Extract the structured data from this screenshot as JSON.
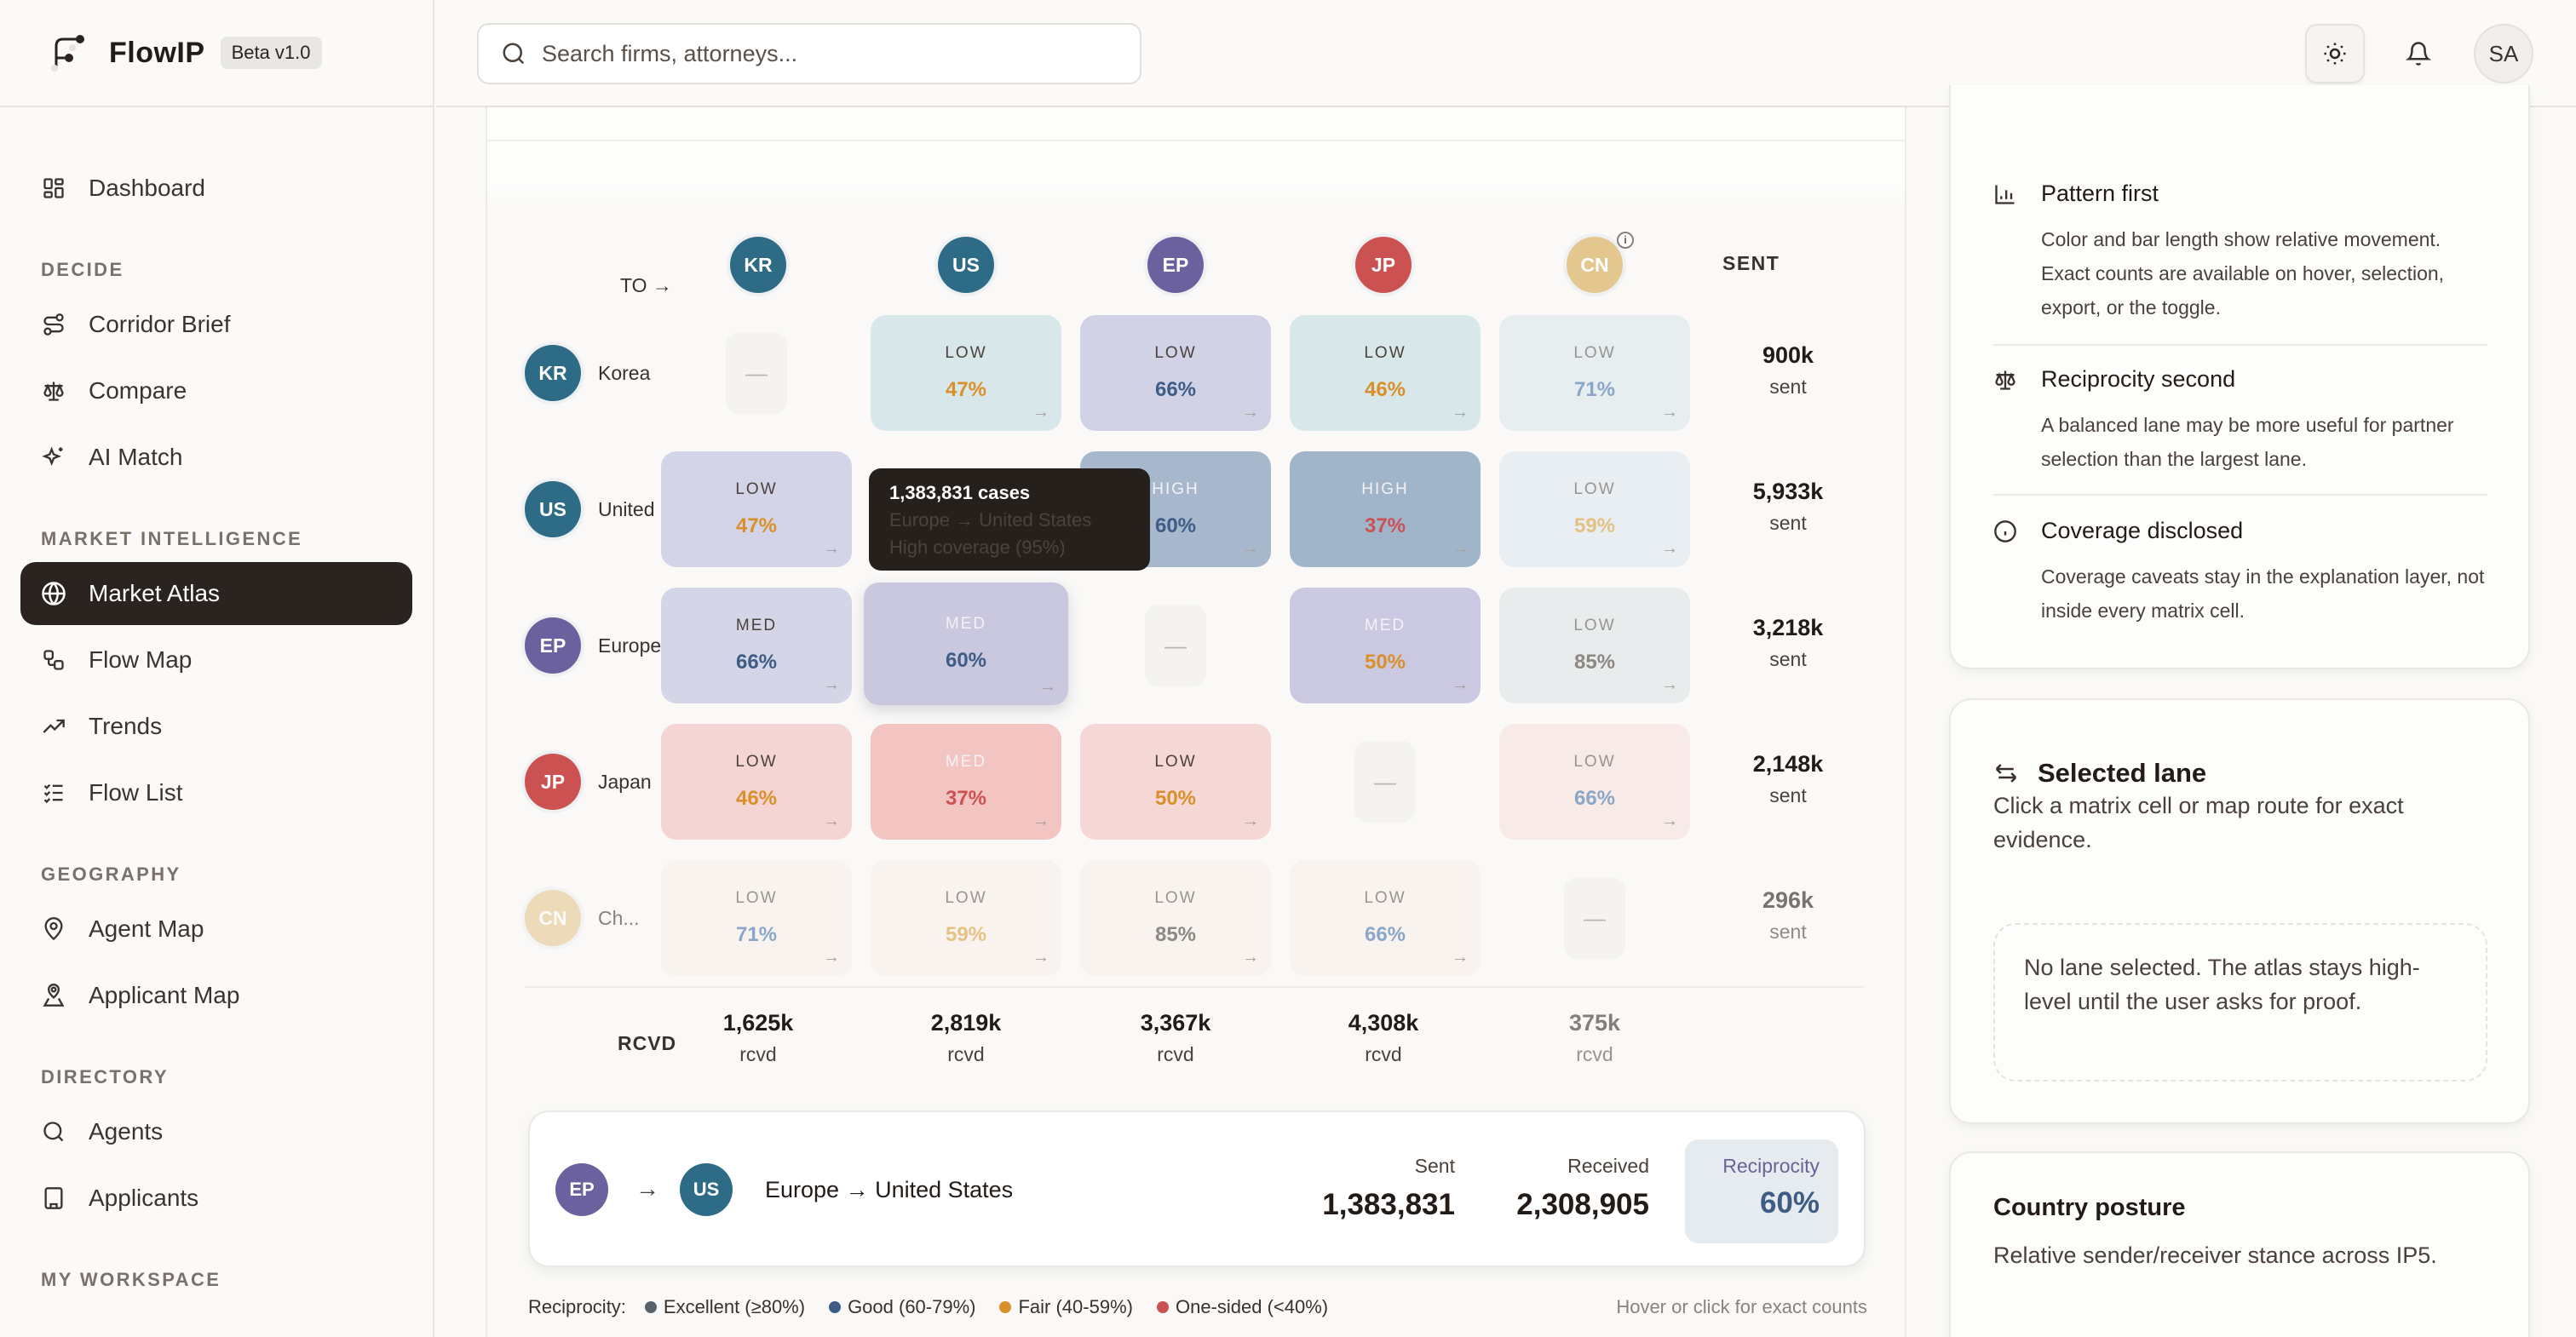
{
  "brand": {
    "name": "FlowIP",
    "badge": "Beta v1.0"
  },
  "sidebar": {
    "top_items": [
      {
        "label": "Dashboard",
        "icon": "dashboard-grid-icon"
      }
    ],
    "sections": [
      {
        "title": "DECIDE",
        "items": [
          {
            "label": "Corridor Brief",
            "icon": "route-icon"
          },
          {
            "label": "Compare",
            "icon": "scale-icon"
          },
          {
            "label": "AI Match",
            "icon": "sparkles-icon"
          }
        ]
      },
      {
        "title": "MARKET INTELLIGENCE",
        "items": [
          {
            "label": "Market Atlas",
            "icon": "globe-icon",
            "active": true
          },
          {
            "label": "Flow Map",
            "icon": "workflow-icon"
          },
          {
            "label": "Trends",
            "icon": "trending-up-icon"
          },
          {
            "label": "Flow List",
            "icon": "checklist-icon"
          }
        ]
      },
      {
        "title": "GEOGRAPHY",
        "items": [
          {
            "label": "Agent Map",
            "icon": "map-pin-icon"
          },
          {
            "label": "Applicant Map",
            "icon": "map-pin-user-icon"
          }
        ]
      },
      {
        "title": "DIRECTORY",
        "items": [
          {
            "label": "Agents",
            "icon": "search-icon"
          },
          {
            "label": "Applicants",
            "icon": "building-icon"
          }
        ]
      },
      {
        "title": "MY WORKSPACE",
        "items": []
      }
    ]
  },
  "topbar": {
    "search_placeholder": "Search firms, attorneys...",
    "theme_icon": "sun-icon",
    "notifications_icon": "bell-icon",
    "avatar_initials": "SA"
  },
  "matrix": {
    "to_label": "TO →",
    "sent_header": "SENT",
    "rcvd_label": "RCVD",
    "columns": [
      {
        "code": "KR",
        "color": "#2e6b86"
      },
      {
        "code": "US",
        "color": "#2e6b86"
      },
      {
        "code": "EP",
        "color": "#6a619e"
      },
      {
        "code": "JP",
        "color": "#cc5252"
      },
      {
        "code": "CN",
        "color": "#e3c78f",
        "info": true
      }
    ],
    "rows": [
      {
        "code": "KR",
        "name": "Korea",
        "color": "#2e6b86",
        "sent": "900k",
        "sent_unit": "sent",
        "cells": [
          null,
          {
            "level": "LOW",
            "pct": "47%",
            "pct_color": "#d9902a",
            "bg": "#d8e8ea"
          },
          {
            "level": "LOW",
            "pct": "66%",
            "pct_color": "#3e5c86",
            "bg": "#d2d2e6"
          },
          {
            "level": "LOW",
            "pct": "46%",
            "pct_color": "#d9902a",
            "bg": "#d8e8ea"
          },
          {
            "level": "LOW",
            "pct": "71%",
            "pct_color": "#8aa6c8",
            "bg": "#e7eef0",
            "faded": true
          }
        ]
      },
      {
        "code": "US",
        "name": "United",
        "color": "#2e6b86",
        "sent": "5,933k",
        "sent_unit": "sent",
        "cells": [
          {
            "level": "LOW",
            "pct": "47%",
            "pct_color": "#d9902a",
            "bg": "#d4d4e8"
          },
          {
            "level": "",
            "pct": "",
            "pct_color": "#3e5c86",
            "bg": "#faf9f7",
            "hidden": true
          },
          {
            "level": "HIGH",
            "pct": "60%",
            "pct_color": "#3e5c86",
            "bg": "#a7b8cc"
          },
          {
            "level": "HIGH",
            "pct": "37%",
            "pct_color": "#cc5252",
            "bg": "#a0b4ca"
          },
          {
            "level": "LOW",
            "pct": "59%",
            "pct_color": "#e6c184",
            "bg": "#e8eef1",
            "faded": true
          }
        ]
      },
      {
        "code": "EP",
        "name": "Europe",
        "color": "#6a619e",
        "sent": "3,218k",
        "sent_unit": "sent",
        "cells": [
          {
            "level": "MED",
            "pct": "66%",
            "pct_color": "#3e5c86",
            "bg": "#d4d6e8"
          },
          {
            "level": "MED",
            "pct": "60%",
            "pct_color": "#3e5c86",
            "bg": "#c9c8de",
            "hovered": true
          },
          null,
          {
            "level": "MED",
            "pct": "50%",
            "pct_color": "#d9902a",
            "bg": "#cbc9e1"
          },
          {
            "level": "LOW",
            "pct": "85%",
            "pct_color": "#8d8884",
            "bg": "#e9ecec",
            "faded": true
          }
        ]
      },
      {
        "code": "JP",
        "name": "Japan",
        "color": "#cc5252",
        "sent": "2,148k",
        "sent_unit": "sent",
        "cells": [
          {
            "level": "LOW",
            "pct": "46%",
            "pct_color": "#d9902a",
            "bg": "#f4d5d3"
          },
          {
            "level": "MED",
            "pct": "37%",
            "pct_color": "#cc5252",
            "bg": "#f2c4c2"
          },
          {
            "level": "LOW",
            "pct": "50%",
            "pct_color": "#d9902a",
            "bg": "#f5d8d6"
          },
          null,
          {
            "level": "LOW",
            "pct": "66%",
            "pct_color": "#8aa6c8",
            "bg": "#f8ebe7",
            "faded": true
          }
        ]
      },
      {
        "code": "CN",
        "name": "Ch...",
        "color": "#e3c78f",
        "info": true,
        "faded": true,
        "sent": "296k",
        "sent_unit": "sent",
        "cells": [
          {
            "level": "LOW",
            "pct": "71%",
            "pct_color": "#8aa6c8",
            "bg": "#f8f3ef",
            "faded": true
          },
          {
            "level": "LOW",
            "pct": "59%",
            "pct_color": "#e6c184",
            "bg": "#f8f3ef",
            "faded": true
          },
          {
            "level": "LOW",
            "pct": "85%",
            "pct_color": "#8d8884",
            "bg": "#f8f3ef",
            "faded": true
          },
          {
            "level": "LOW",
            "pct": "66%",
            "pct_color": "#8aa6c8",
            "bg": "#f8f3ef",
            "faded": true
          },
          null
        ]
      }
    ],
    "received": [
      {
        "value": "1,625k",
        "unit": "rcvd"
      },
      {
        "value": "2,819k",
        "unit": "rcvd"
      },
      {
        "value": "3,367k",
        "unit": "rcvd"
      },
      {
        "value": "4,308k",
        "unit": "rcvd"
      },
      {
        "value": "375k",
        "unit": "rcvd",
        "faded": true
      }
    ],
    "empty_cell_glyph": "—",
    "arrow_glyph": "→"
  },
  "tooltip": {
    "count": "1,383,831 cases",
    "route": "Europe → United States",
    "coverage": "High coverage (95%)"
  },
  "lane_summary": {
    "from_code": "EP",
    "from_color": "#6a619e",
    "to_code": "US",
    "to_color": "#2e6b86",
    "arrow": "→",
    "title": "Europe → United States",
    "sent_label": "Sent",
    "sent_value": "1,383,831",
    "received_label": "Received",
    "received_value": "2,308,905",
    "reciprocity_label": "Reciprocity",
    "reciprocity_value": "60%"
  },
  "legend": {
    "label": "Reciprocity:",
    "items": [
      {
        "label": "Excellent (≥80%)",
        "color": "#56636c"
      },
      {
        "label": "Good (60-79%)",
        "color": "#3e5c86"
      },
      {
        "label": "Fair (40-59%)",
        "color": "#d9902a"
      },
      {
        "label": "One-sided (<40%)",
        "color": "#cc5252"
      }
    ],
    "hint": "Hover or click for exact counts"
  },
  "explain": {
    "items": [
      {
        "title": "Pattern first",
        "icon": "bar-chart-icon",
        "body": "Color and bar length show relative movement. Exact counts are available on hover, selection, export, or the toggle."
      },
      {
        "title": "Reciprocity second",
        "icon": "scale-icon",
        "body": "A balanced lane may be more useful for partner selection than the largest lane."
      },
      {
        "title": "Coverage disclosed",
        "icon": "info-icon",
        "body": "Coverage caveats stay in the explanation layer, not inside every matrix cell."
      }
    ]
  },
  "selected_lane": {
    "title": "Selected lane",
    "description": "Click a matrix cell or map route for exact evidence.",
    "empty_state": "No lane selected. The atlas stays high-level until the user asks for proof."
  },
  "country_posture": {
    "title": "Country posture",
    "description": "Relative sender/receiver stance across IP5."
  }
}
